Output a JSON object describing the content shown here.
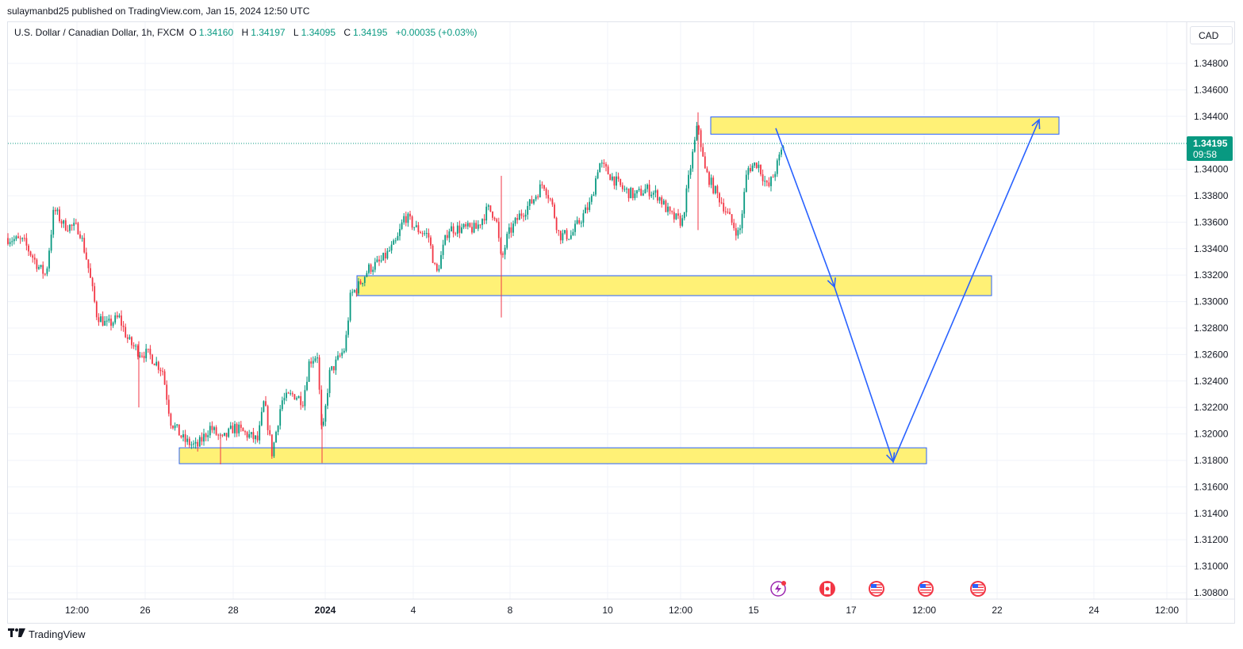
{
  "header": {
    "published": "sulaymanbd25 published on TradingView.com, Jan 15, 2024 12:50 UTC"
  },
  "legend": {
    "symbol": "U.S. Dollar / Canadian Dollar, 1h, FXCM",
    "o_label": "O",
    "o": "1.34160",
    "h_label": "H",
    "h": "1.34197",
    "l_label": "L",
    "l": "1.34095",
    "c_label": "C",
    "c": "1.34195",
    "change": "+0.00035 (+0.03%)"
  },
  "currency_button": "CAD",
  "footer": {
    "brand": "TradingView",
    "logo_icon": "tradingview-logo-icon"
  },
  "colors": {
    "up": "#089981",
    "down": "#f23645",
    "zone_fill": "#fff176",
    "zone_border": "#2962ff",
    "arrow": "#2962ff"
  },
  "chart_data": {
    "type": "candlestick",
    "title": "U.S. Dollar / Canadian Dollar, 1h, FXCM",
    "ylim": [
      1.307,
      1.35
    ],
    "y_ticks": [
      "1.34800",
      "1.34600",
      "1.34400",
      "1.34000",
      "1.33800",
      "1.33600",
      "1.33400",
      "1.33200",
      "1.33000",
      "1.32800",
      "1.32600",
      "1.32400",
      "1.32200",
      "1.32000",
      "1.31800",
      "1.31600",
      "1.31400",
      "1.31200",
      "1.31000",
      "1.30800"
    ],
    "x_ticks": [
      "12:00",
      "26",
      "28",
      "2024",
      "4",
      "8",
      "10",
      "12:00",
      "15",
      "17",
      "12:00",
      "22",
      "24",
      "12:00"
    ],
    "last_price": {
      "value": "1.34195",
      "countdown": "09:58"
    },
    "grid": true,
    "series_path": [
      [
        0,
        1.3348
      ],
      [
        20,
        1.3345
      ],
      [
        40,
        1.3325
      ],
      [
        48,
        1.332
      ],
      [
        58,
        1.337
      ],
      [
        70,
        1.3358
      ],
      [
        90,
        1.3355
      ],
      [
        100,
        1.333
      ],
      [
        112,
        1.329
      ],
      [
        125,
        1.3282
      ],
      [
        140,
        1.3288
      ],
      [
        152,
        1.327
      ],
      [
        165,
        1.3262
      ],
      [
        178,
        1.326
      ],
      [
        195,
        1.3248
      ],
      [
        205,
        1.321
      ],
      [
        222,
        1.3195
      ],
      [
        238,
        1.319
      ],
      [
        255,
        1.3205
      ],
      [
        270,
        1.3195
      ],
      [
        285,
        1.3205
      ],
      [
        300,
        1.32
      ],
      [
        315,
        1.3195
      ],
      [
        323,
        1.3225
      ],
      [
        333,
        1.3185
      ],
      [
        345,
        1.3225
      ],
      [
        360,
        1.323
      ],
      [
        372,
        1.3225
      ],
      [
        380,
        1.3255
      ],
      [
        390,
        1.326
      ],
      [
        396,
        1.3195
      ],
      [
        405,
        1.3245
      ],
      [
        415,
        1.3255
      ],
      [
        425,
        1.3265
      ],
      [
        432,
        1.3305
      ],
      [
        440,
        1.331
      ],
      [
        455,
        1.3325
      ],
      [
        470,
        1.333
      ],
      [
        490,
        1.3345
      ],
      [
        500,
        1.3365
      ],
      [
        515,
        1.3355
      ],
      [
        530,
        1.335
      ],
      [
        540,
        1.332
      ],
      [
        555,
        1.3355
      ],
      [
        570,
        1.3355
      ],
      [
        590,
        1.3355
      ],
      [
        605,
        1.337
      ],
      [
        615,
        1.3365
      ],
      [
        622,
        1.333
      ],
      [
        630,
        1.335
      ],
      [
        645,
        1.3365
      ],
      [
        660,
        1.3375
      ],
      [
        675,
        1.339
      ],
      [
        685,
        1.3375
      ],
      [
        695,
        1.335
      ],
      [
        710,
        1.335
      ],
      [
        725,
        1.3365
      ],
      [
        735,
        1.3375
      ],
      [
        745,
        1.3405
      ],
      [
        760,
        1.3395
      ],
      [
        775,
        1.3385
      ],
      [
        790,
        1.338
      ],
      [
        805,
        1.3385
      ],
      [
        820,
        1.338
      ],
      [
        835,
        1.3365
      ],
      [
        850,
        1.336
      ],
      [
        860,
        1.34
      ],
      [
        870,
        1.3435
      ],
      [
        878,
        1.34
      ],
      [
        890,
        1.3385
      ],
      [
        900,
        1.3375
      ],
      [
        912,
        1.336
      ],
      [
        922,
        1.335
      ],
      [
        932,
        1.34
      ],
      [
        945,
        1.3405
      ],
      [
        958,
        1.3385
      ],
      [
        968,
        1.34
      ],
      [
        978,
        1.3419
      ]
    ],
    "zones": [
      {
        "from_index": 870,
        "to_index": 1325,
        "top": 1.34395,
        "bottom": 1.34265
      },
      {
        "from_index": 424,
        "to_index": 1240,
        "top": 1.33195,
        "bottom": 1.33045
      },
      {
        "from_index": 200,
        "to_index": 1158,
        "top": 1.31895,
        "bottom": 1.31775
      }
    ],
    "projection": [
      {
        "x": 968,
        "y": 1.3431
      },
      {
        "x": 1042,
        "y": 1.3311
      },
      {
        "x": 1116,
        "y": 1.3179
      },
      {
        "x": 1300,
        "y": 1.34375
      }
    ],
    "event_icons": [
      "lightning-icon",
      "canada-flag-icon",
      "us-flag-icon",
      "us-flag-icon",
      "us-flag-icon"
    ]
  }
}
